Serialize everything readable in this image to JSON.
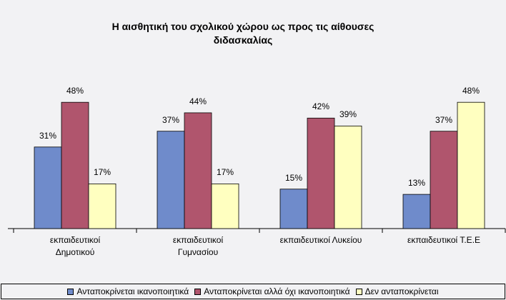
{
  "chart_data": {
    "type": "bar",
    "title": "Η αισθητική του σχολικού χώρου ως προς τις αίθουσες\nδιδασκαλίας",
    "categories": [
      "εκπαιδευτικοί\nΔημοτικού",
      "εκπαιδευτικοί\nΓυμνασίου",
      "εκπαιδευτικοί Λυκείου",
      "εκπαιδευτικοί Τ.Ε.Ε"
    ],
    "series": [
      {
        "name": "Ανταποκρίνεται ικανοποιητικά",
        "color": "#6f8bcb",
        "values": [
          31,
          37,
          15,
          13
        ],
        "value_labels": [
          "31%",
          "37%",
          "15%",
          "13%"
        ]
      },
      {
        "name": "Ανταποκρίνεται αλλά όχι ικανοποιητικά",
        "color": "#b0556d",
        "values": [
          48,
          44,
          42,
          37
        ],
        "value_labels": [
          "48%",
          "44%",
          "42%",
          "37%"
        ]
      },
      {
        "name": "Δεν ανταποκρίνεται",
        "color": "#ffffc0",
        "values": [
          17,
          17,
          39,
          48
        ],
        "value_labels": [
          "17%",
          "17%",
          "39%",
          "48%"
        ]
      }
    ],
    "ylim": [
      0,
      60
    ]
  }
}
